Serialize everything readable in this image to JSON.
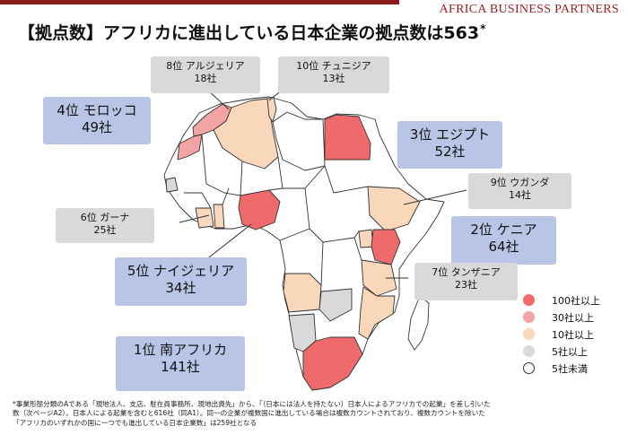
{
  "brand": "Africa Business Partners",
  "title": {
    "text": "【拠点数】アフリカに進出している日本企業の拠点数は563",
    "mark": "*"
  },
  "colors": {
    "tier100": "#ef6b6b",
    "tier30": "#f2a3a3",
    "tier10": "#f8d7ba",
    "tier5": "#d9d9d9",
    "tierLow": "#ffffff",
    "rankBox": "#b9c5e6",
    "smallBox": "#d9d9d9",
    "accent": "#8b1a1a"
  },
  "labels": [
    {
      "rank": "1位",
      "country": "南アフリカ",
      "count": "141社"
    },
    {
      "rank": "2位",
      "country": "ケニア",
      "count": "64社"
    },
    {
      "rank": "3位",
      "country": "エジプト",
      "count": "52社"
    },
    {
      "rank": "4位",
      "country": "モロッコ",
      "count": "49社"
    },
    {
      "rank": "5位",
      "country": "ナイジェリア",
      "count": "34社"
    },
    {
      "rank": "6位",
      "country": "ガーナ",
      "count": "25社"
    },
    {
      "rank": "7位",
      "country": "タンザニア",
      "count": "23社"
    },
    {
      "rank": "8位",
      "country": "アルジェリア",
      "count": "18社"
    },
    {
      "rank": "9位",
      "country": "ウガンダ",
      "count": "14社"
    },
    {
      "rank": "10位",
      "country": "チュニジア",
      "count": "13社"
    }
  ],
  "legend": [
    {
      "label": "100社以上",
      "color": "#ef6b6b"
    },
    {
      "label": "30社以上",
      "color": "#f2a3a3"
    },
    {
      "label": "10社以上",
      "color": "#f8d7ba"
    },
    {
      "label": "5社以上",
      "color": "#d9d9d9"
    },
    {
      "label": "5社未満",
      "color": "#ffffff"
    }
  ],
  "footnote": {
    "line1": "*事業形態分類のAである「現地法人、支店、駐在員事務所、現地出資先」から、「（日本には法人を持たない）日本人によるアフリカでの起業」を差し引いた",
    "line2": "数（次ページA2）。日本人による起業を含むと616社（同A1）。同一の企業が複数国に進出している場合は複数カウントされており、複数カウントを除いた",
    "line3": "「アフリカのいずれかの国に一つでも進出している日本企業数」は259社となる"
  }
}
